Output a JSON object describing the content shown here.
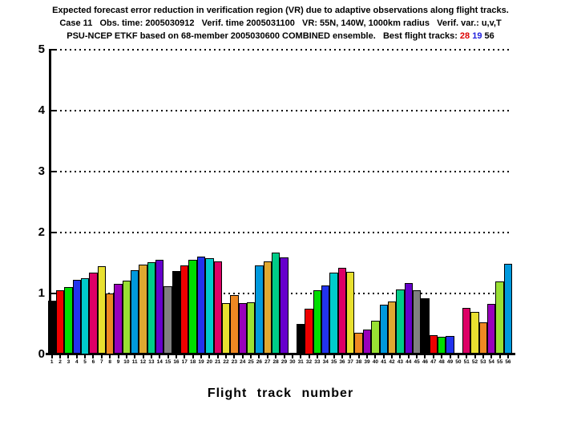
{
  "title": {
    "line1": "Expected forecast error reduction in verification region (VR) due to adaptive observations along flight tracks.",
    "line2": "Case 11   Obs. time: 2005030912   Verif. time 2005031100   VR: 55N, 140W, 1000km radius   Verif. var.: u,v,T",
    "line3_prefix": "PSU-NCEP ETKF based on 68-member 2005030600 COMBINED ensemble.   Best flight tracks: ",
    "best_tracks": [
      {
        "label": "28",
        "color": "#dd0000"
      },
      {
        "label": "19",
        "color": "#2222dd"
      },
      {
        "label": "56",
        "color": "#000000"
      }
    ]
  },
  "chart_data": {
    "type": "bar",
    "title": "Expected forecast error reduction in verification region (VR) due to adaptive observations along flight tracks.",
    "subtitle": "Case 11  Obs. time: 2005030912  Verif. time 2005031100  VR: 55N, 140W, 1000km radius  Verif. var.: u,v,T  |  PSU-NCEP ETKF based on 68-member 2005030600 COMBINED ensemble.  Best flight tracks: 28 19 56",
    "xlabel": "Flight track number",
    "ylabel": "",
    "ylim": [
      0,
      5
    ],
    "yticks": [
      0,
      1,
      2,
      3,
      4,
      5
    ],
    "grid": "horizontal-dotted",
    "legend": "none",
    "categories": [
      "1",
      "2",
      "3",
      "4",
      "5",
      "6",
      "7",
      "8",
      "9",
      "10",
      "11",
      "12",
      "13",
      "14",
      "15",
      "16",
      "17",
      "18",
      "19",
      "20",
      "21",
      "22",
      "23",
      "24",
      "25",
      "26",
      "27",
      "28",
      "29",
      "30",
      "31",
      "32",
      "33",
      "34",
      "35",
      "36",
      "37",
      "38",
      "39",
      "40",
      "41",
      "42",
      "43",
      "44",
      "45",
      "46",
      "47",
      "48",
      "49",
      "50",
      "51",
      "52",
      "53",
      "54",
      "55",
      "56"
    ],
    "values": [
      0.88,
      1.04,
      1.1,
      1.22,
      1.25,
      1.34,
      1.44,
      1.0,
      1.15,
      1.21,
      1.37,
      1.47,
      1.51,
      1.54,
      1.11,
      1.36,
      1.45,
      1.54,
      1.6,
      1.57,
      1.52,
      0.84,
      0.97,
      0.83,
      0.85,
      1.46,
      1.52,
      1.67,
      1.58,
      0.0,
      0.5,
      0.75,
      1.04,
      1.13,
      1.34,
      1.42,
      1.35,
      0.35,
      0.4,
      0.54,
      0.81,
      0.86,
      1.06,
      1.16,
      1.04,
      0.92,
      0.31,
      0.28,
      0.3,
      0.0,
      0.76,
      0.69,
      0.52,
      0.82,
      1.19,
      1.48
    ],
    "zero_value_tracks": [
      30,
      50
    ],
    "palette": [
      "#000000",
      "#ee0000",
      "#00dd00",
      "#2233ee",
      "#00cccc",
      "#dd0066",
      "#e8e030",
      "#ee8822",
      "#9900bb",
      "#99e033",
      "#0099dd",
      "#e0a830",
      "#00cc88",
      "#6600cc",
      "#808080"
    ],
    "bar_outline_color": "#000000"
  }
}
